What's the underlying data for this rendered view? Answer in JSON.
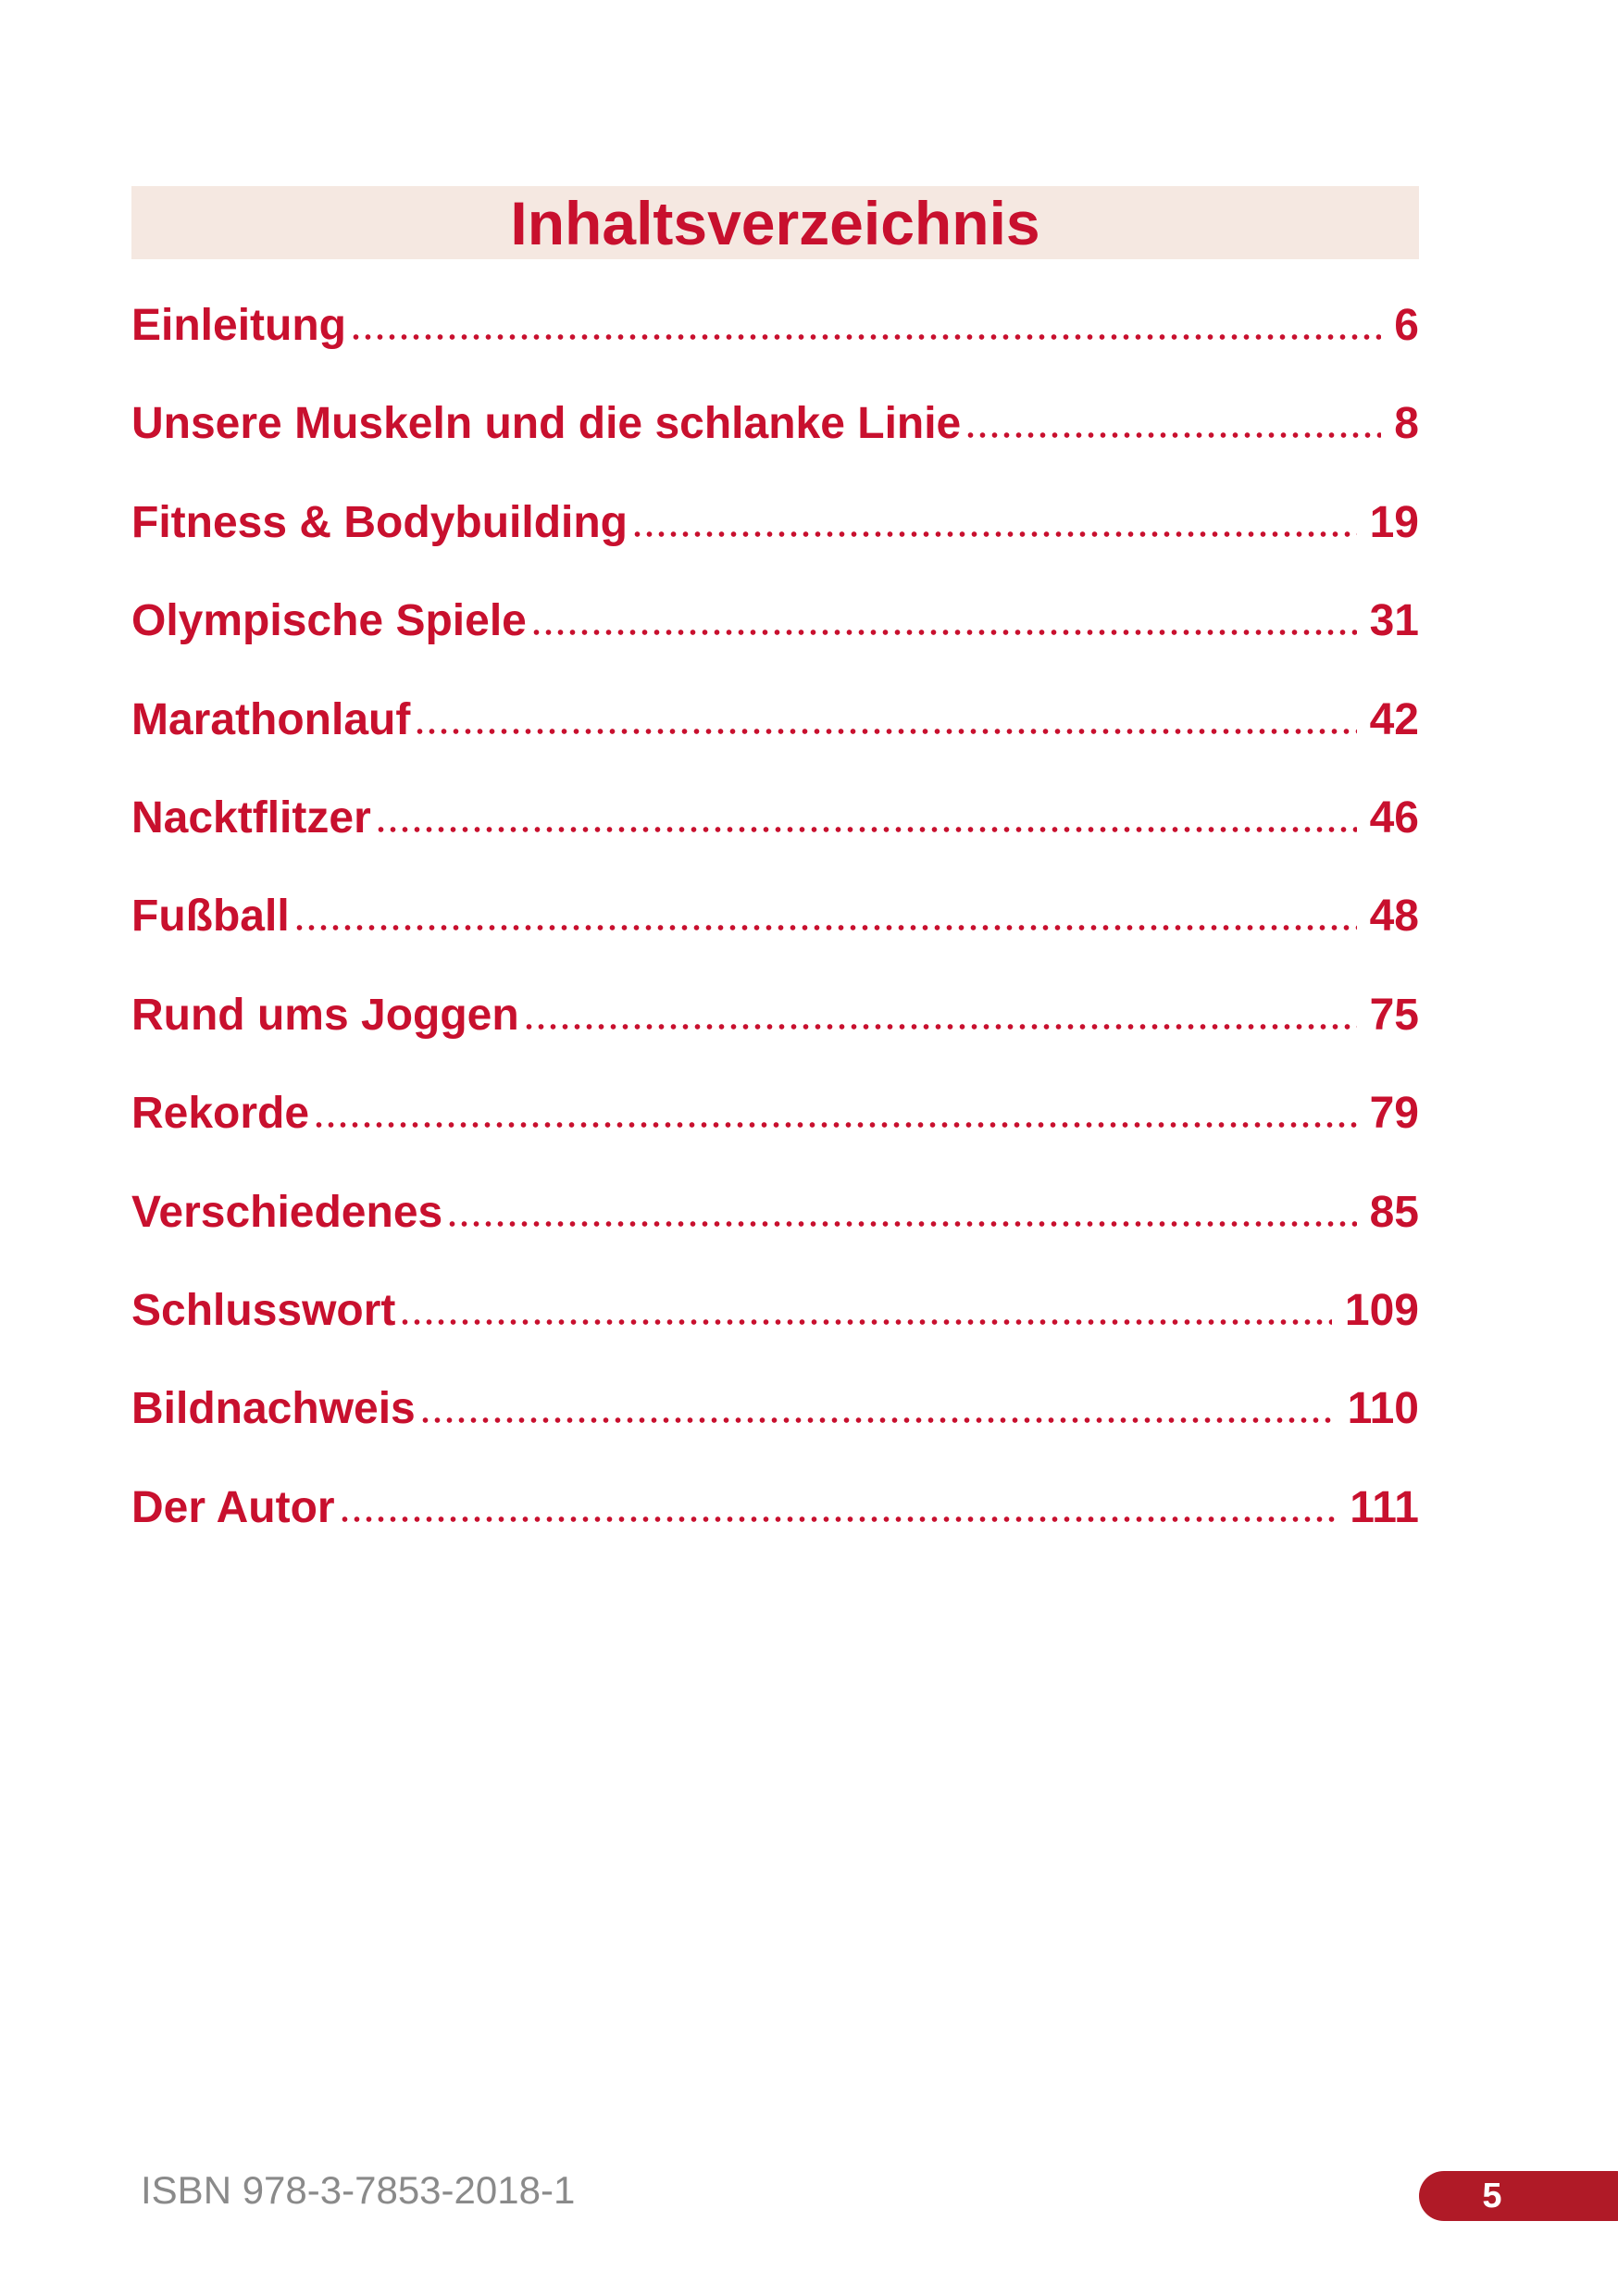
{
  "title": "Inhaltsverzeichnis",
  "entries": [
    {
      "label": "Einleitung",
      "page": 6
    },
    {
      "label": "Unsere Muskeln und die schlanke Linie",
      "page": 8
    },
    {
      "label": "Fitness & Bodybuilding",
      "page": 19
    },
    {
      "label": "Olympische Spiele",
      "page": 31
    },
    {
      "label": "Marathonlauf",
      "page": 42
    },
    {
      "label": "Nacktflitzer",
      "page": 46
    },
    {
      "label": "Fußball",
      "page": 48
    },
    {
      "label": "Rund ums Joggen",
      "page": 75
    },
    {
      "label": "Rekorde",
      "page": 79
    },
    {
      "label": "Verschiedenes",
      "page": 85
    },
    {
      "label": "Schlusswort",
      "page": 109
    },
    {
      "label": "Bildnachweis",
      "page": 110
    },
    {
      "label": "Der Autor",
      "page": 111
    }
  ],
  "footer": {
    "isbn": "ISBN 978-3-7853-2018-1",
    "page_number": 5
  }
}
